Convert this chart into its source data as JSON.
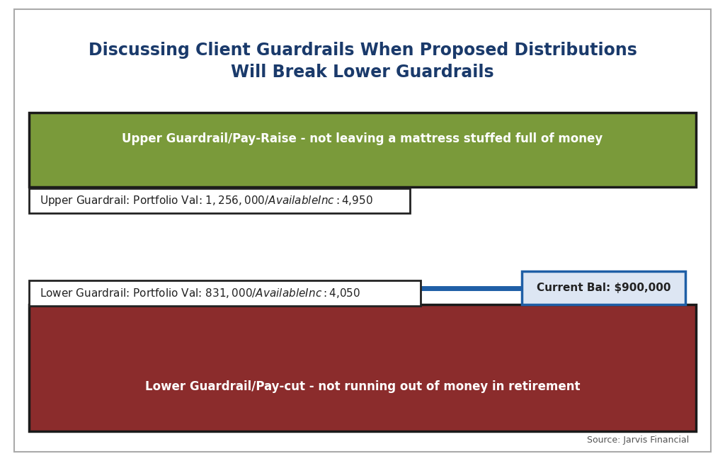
{
  "title_line1": "Discussing Client Guardrails When Proposed Distributions",
  "title_line2": "Will Break Lower Guardrails",
  "title_color": "#1a3a6b",
  "title_fontsize": 17,
  "background_color": "#ffffff",
  "upper_band_color": "#7a9a3a",
  "upper_band_text": "Upper Guardrail/Pay-Raise - not leaving a mattress stuffed full of money",
  "upper_band_text_color": "#ffffff",
  "upper_band_text_fontsize": 12,
  "upper_label_text": "Upper Guardrail: Portfolio Val: $1,256,000 / Available Inc: $4,950",
  "upper_label_fontsize": 11,
  "upper_label_bg": "#ffffff",
  "upper_label_border": "#222222",
  "current_bal_line_color": "#1f5fa6",
  "current_bal_text": "Current Bal: $900,000",
  "current_bal_fontsize": 11,
  "current_bal_box_bg": "#dde6f3",
  "current_bal_box_border": "#1f5fa6",
  "lower_band_color": "#8b2c2c",
  "lower_band_text": "Lower Guardrail/Pay-cut - not running out of money in retirement",
  "lower_band_text_color": "#ffffff",
  "lower_band_text_fontsize": 12,
  "lower_label_text": "Lower Guardrail: Portfolio Val: $831,000 / Available Inc: $4,050",
  "lower_label_fontsize": 11,
  "lower_label_bg": "#ffffff",
  "lower_label_border": "#222222",
  "source_text": "Source: Jarvis Financial",
  "source_fontsize": 9,
  "source_color": "#555555"
}
